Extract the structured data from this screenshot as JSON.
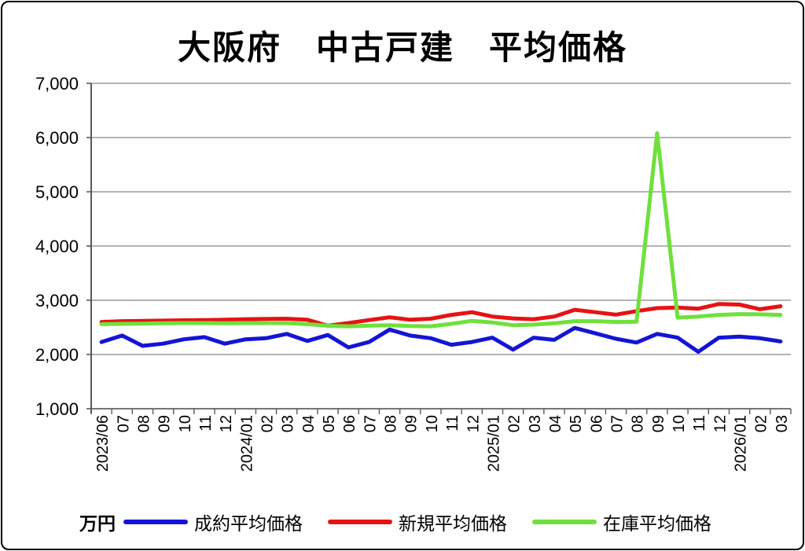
{
  "title": "大阪府　中古戸建　平均価格",
  "unit_label": "万円",
  "legend": [
    {
      "label": "成約平均価格",
      "color": "#1414d6"
    },
    {
      "label": "新規平均価格",
      "color": "#e81212"
    },
    {
      "label": "在庫平均価格",
      "color": "#6fe03c"
    }
  ],
  "colors": {
    "gridline": "#9b9b9b",
    "axis": "#595959",
    "text": "#000000"
  },
  "chart_data": {
    "type": "line",
    "title": "大阪府　中古戸建　平均価格",
    "xlabel": "",
    "ylabel": "万円",
    "ylim": [
      1000,
      7000
    ],
    "ytick_interval": 1000,
    "ytick_labels": [
      "1,000",
      "2,000",
      "3,000",
      "4,000",
      "5,000",
      "6,000",
      "7,000"
    ],
    "grid": true,
    "legend_position": "bottom",
    "categories": [
      "2023/06",
      "07",
      "08",
      "09",
      "10",
      "11",
      "12",
      "2024/01",
      "02",
      "03",
      "04",
      "05",
      "06",
      "07",
      "08",
      "09",
      "10",
      "11",
      "12",
      "2025/01",
      "02",
      "03",
      "04",
      "05",
      "06",
      "07",
      "08",
      "09",
      "10",
      "11",
      "12",
      "2026/01",
      "02",
      "03"
    ],
    "series": [
      {
        "name": "成約平均価格",
        "color": "#1414d6",
        "values": [
          2230,
          2350,
          2160,
          2200,
          2280,
          2320,
          2200,
          2280,
          2300,
          2380,
          2250,
          2360,
          2130,
          2230,
          2460,
          2350,
          2300,
          2180,
          2230,
          2310,
          2090,
          2310,
          2270,
          2490,
          2390,
          2290,
          2220,
          2380,
          2310,
          2050,
          2310,
          2330,
          2300,
          2240
        ]
      },
      {
        "name": "新規平均価格",
        "color": "#e81212",
        "values": [
          2600,
          2615,
          2620,
          2625,
          2630,
          2635,
          2640,
          2650,
          2655,
          2660,
          2640,
          2530,
          2580,
          2635,
          2685,
          2640,
          2660,
          2730,
          2780,
          2700,
          2665,
          2650,
          2700,
          2825,
          2780,
          2735,
          2800,
          2855,
          2865,
          2845,
          2930,
          2920,
          2835,
          2890
        ]
      },
      {
        "name": "在庫平均価格",
        "color": "#6fe03c",
        "values": [
          2560,
          2565,
          2570,
          2575,
          2580,
          2580,
          2575,
          2580,
          2580,
          2580,
          2560,
          2530,
          2520,
          2530,
          2540,
          2525,
          2520,
          2565,
          2620,
          2590,
          2540,
          2550,
          2575,
          2615,
          2615,
          2600,
          2605,
          6080,
          2680,
          2700,
          2730,
          2745,
          2740,
          2730
        ]
      }
    ]
  }
}
